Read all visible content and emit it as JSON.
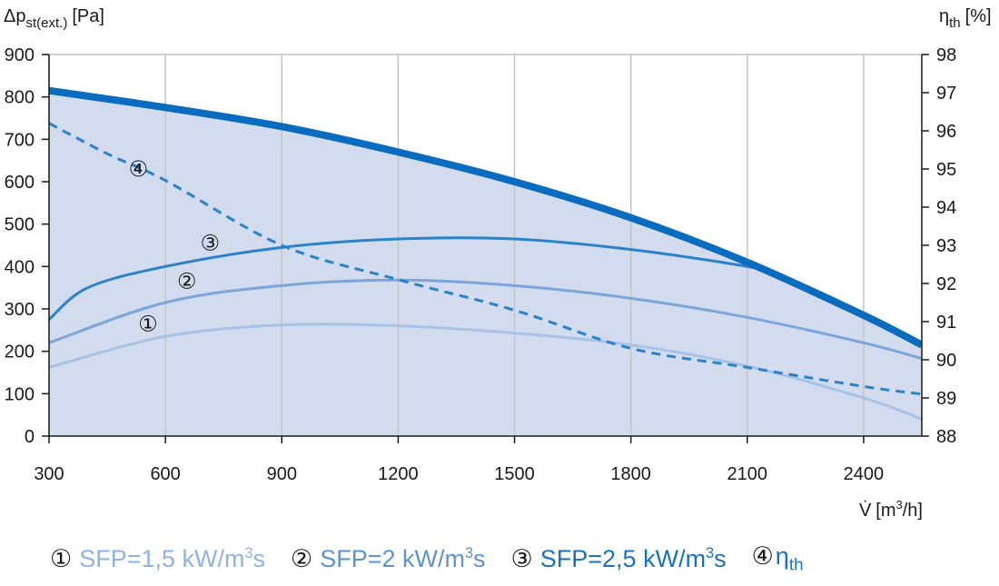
{
  "chart_data": {
    "type": "line",
    "y_label_left": "Δp",
    "y_label_left_sub": "st(ext.)",
    "y_label_left_unit": "[Pa]",
    "y_label_right": "η",
    "y_label_right_sub": "th",
    "y_label_right_unit": "[%]",
    "x_label": "V̇",
    "x_label_unit": "[m",
    "x_label_sup": "3",
    "x_label_unit_end": "/h]",
    "xlim": [
      300,
      2550
    ],
    "ylim_left": [
      0,
      900
    ],
    "ylim_right": [
      88,
      98
    ],
    "grid": true,
    "x_ticks": [
      "300",
      "600",
      "900",
      "1200",
      "1500",
      "1800",
      "2100",
      "2400"
    ],
    "y_ticks_left": [
      "0",
      "100",
      "200",
      "300",
      "400",
      "500",
      "600",
      "700",
      "800",
      "900"
    ],
    "y_ticks_right": [
      "88",
      "89",
      "90",
      "91",
      "92",
      "93",
      "94",
      "95",
      "96",
      "97",
      "98"
    ],
    "colors": {
      "envelope": "#0a6cbf",
      "area_fill": "#d3dcef",
      "sfp_1_5": "#a6c2e6",
      "sfp_2": "#7ba6da",
      "sfp_2_5": "#2a82c8",
      "eta": "#2a82c8"
    },
    "series": [
      {
        "id": "envelope",
        "axis": "left",
        "style": "solid-thick",
        "x": [
          300,
          600,
          900,
          1200,
          1500,
          1800,
          2100,
          2400,
          2550
        ],
        "y": [
          815,
          775,
          730,
          670,
          600,
          515,
          410,
          285,
          215
        ]
      },
      {
        "id": "sfp_2_5",
        "marker": "③",
        "axis": "left",
        "style": "solid",
        "x": [
          300,
          400,
          600,
          900,
          1200,
          1500,
          1800,
          2100,
          2180
        ],
        "y": [
          275,
          350,
          400,
          445,
          465,
          465,
          440,
          400,
          380
        ]
      },
      {
        "id": "sfp_2",
        "marker": "②",
        "axis": "left",
        "style": "solid",
        "x": [
          300,
          600,
          900,
          1200,
          1500,
          1800,
          2100,
          2400,
          2550
        ],
        "y": [
          220,
          315,
          355,
          368,
          355,
          325,
          280,
          220,
          183
        ]
      },
      {
        "id": "sfp_1_5",
        "marker": "①",
        "axis": "left",
        "style": "solid",
        "x": [
          300,
          600,
          900,
          1200,
          1500,
          1800,
          2100,
          2400,
          2550
        ],
        "y": [
          162,
          235,
          262,
          260,
          243,
          215,
          165,
          90,
          40
        ]
      },
      {
        "id": "eta",
        "marker": "④",
        "axis": "right",
        "style": "dashed",
        "x": [
          300,
          450,
          600,
          900,
          1200,
          1500,
          1800,
          2100,
          2400,
          2550
        ],
        "y": [
          96.2,
          95.4,
          94.7,
          93.0,
          92.1,
          91.3,
          90.3,
          89.8,
          89.3,
          89.1
        ]
      }
    ],
    "curve_markers": [
      {
        "text": "④",
        "x": 530,
        "y": 630
      },
      {
        "text": "③",
        "x": 715,
        "y": 455
      },
      {
        "text": "②",
        "x": 655,
        "y": 365
      },
      {
        "text": "①",
        "x": 555,
        "y": 265
      }
    ],
    "legend": [
      {
        "marker": "①",
        "label": "SFP=1,5 kW/m",
        "sup": "3",
        "label_end": "s",
        "color": "#8fb3e1"
      },
      {
        "marker": "②",
        "label": "SFP=2 kW/m",
        "sup": "3",
        "label_end": "s",
        "color": "#5d93d4"
      },
      {
        "marker": "③",
        "label": "SFP=2,5 kW/m",
        "sup": "3",
        "label_end": "s",
        "color": "#1873be"
      },
      {
        "marker": "④",
        "label": "η",
        "sub": "th",
        "color": "#1873be"
      }
    ]
  }
}
